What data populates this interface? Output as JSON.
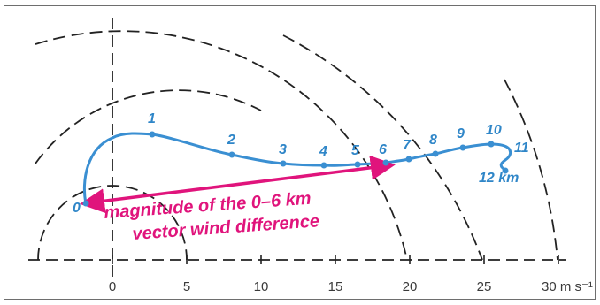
{
  "figure": {
    "x_tick_labels": [
      "0",
      "5",
      "10",
      "15",
      "20",
      "25",
      "30 m s⁻¹"
    ],
    "hodograph": {
      "height_labels": [
        "0",
        "1",
        "2",
        "3",
        "4",
        "5",
        "6",
        "7",
        "8",
        "9",
        "10",
        "11"
      ],
      "top_label": "12 km",
      "points": [
        {
          "label": "0",
          "u": -1.0,
          "v": -3.1
        },
        {
          "label": "1",
          "u": 2.7,
          "v": 4.6
        },
        {
          "label": "2",
          "u": 8.1,
          "v": 2.3
        },
        {
          "label": "3",
          "u": 11.5,
          "v": 1.1
        },
        {
          "label": "4",
          "u": 14.2,
          "v": 0.9
        },
        {
          "label": "5",
          "u": 16.5,
          "v": 1.0
        },
        {
          "label": "6",
          "u": 18.5,
          "v": 1.2
        },
        {
          "label": "7",
          "u": 20.0,
          "v": 1.7
        },
        {
          "label": "8",
          "u": 21.8,
          "v": 2.3
        },
        {
          "label": "9",
          "u": 23.7,
          "v": 2.9
        },
        {
          "label": "10",
          "u": 25.6,
          "v": 3.2
        },
        {
          "label": "11",
          "u": 27.0,
          "v": 2.9
        }
      ],
      "line_color": "#3a8fd2"
    },
    "shear_vector": {
      "annotation_line1": "magnitude of the 0–6 km",
      "annotation_line2": "vector wind difference",
      "color": "#e0147c"
    },
    "rings_speeds": [
      5,
      10,
      20,
      25,
      30
    ]
  }
}
